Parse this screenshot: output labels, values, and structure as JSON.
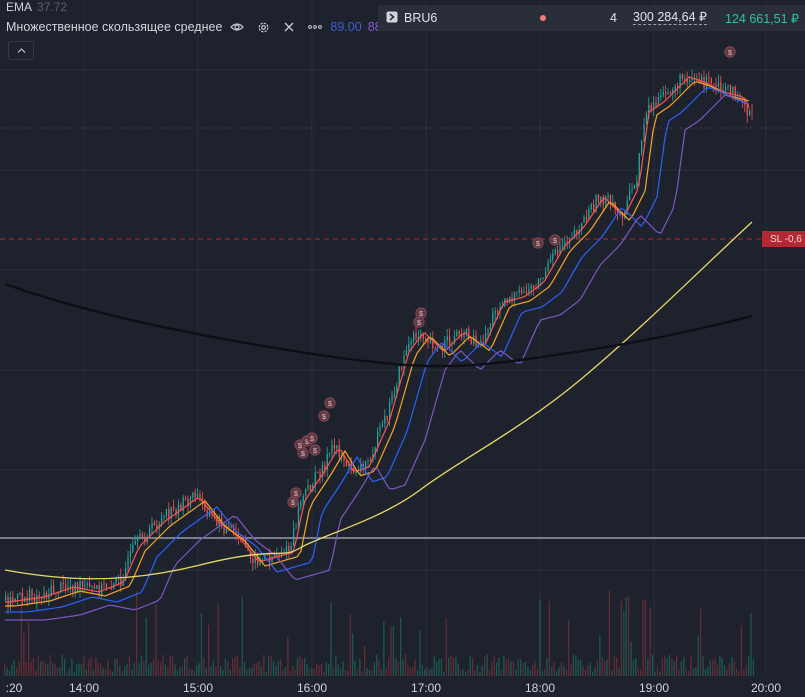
{
  "legend": {
    "ema_label": "EMA",
    "ema_value": "37.72",
    "ma_label": "Множественное скользящее среднее",
    "ma_value_blue": "89.00",
    "ma_value_purple": "88.78"
  },
  "ticker": {
    "name": "BRU6",
    "quantity": "4",
    "position_value": "300 284,64 ₽",
    "pnl": "124 661,51 ₽"
  },
  "stop_loss_label": "SL -0,6",
  "xaxis": {
    "labels": [
      ":20",
      "14:00",
      "15:00",
      "16:00",
      "17:00",
      "18:00",
      "19:00",
      "20:00"
    ]
  },
  "colors": {
    "background": "#1e222d",
    "up": "#26a69a",
    "down": "#ef5350",
    "ema_fast": "#ff5252",
    "ema_orange": "#f5a623",
    "ma_blue": "#2962ff",
    "ma_purple": "#7e57c2",
    "ma_yellow": "#e6d96a",
    "ma_black": "#0d0f14"
  },
  "markers": {
    "icon": "dividend-dollar-icon",
    "symbol": "$"
  }
}
